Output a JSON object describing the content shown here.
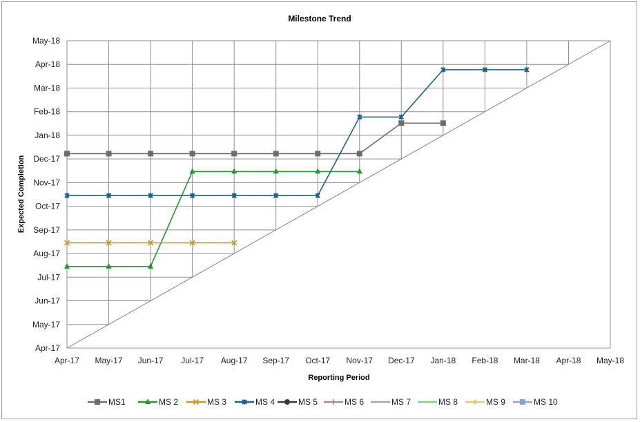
{
  "chart_data": {
    "type": "line",
    "title": "Milestone Trend",
    "xlabel": "Reporting Period",
    "ylabel": "Expected Completion",
    "x_ticks": [
      "Apr-17",
      "May-17",
      "Jun-17",
      "Jul-17",
      "Aug-17",
      "Sep-17",
      "Oct-17",
      "Nov-17",
      "Dec-17",
      "Jan-18",
      "Feb-18",
      "Mar-18",
      "Apr-18",
      "May-18"
    ],
    "y_ticks": [
      "Apr-17",
      "May-17",
      "Jun-17",
      "Jul-17",
      "Aug-17",
      "Sep-17",
      "Oct-17",
      "Nov-17",
      "Dec-17",
      "Jan-18",
      "Feb-18",
      "Mar-18",
      "Apr-18",
      "May-18"
    ],
    "xlim": [
      "Apr-17",
      "May-18"
    ],
    "ylim": [
      "Apr-17",
      "May-18"
    ],
    "grid": true,
    "legend_position": "bottom",
    "reference_line": {
      "from": [
        "Apr-17",
        "Apr-17"
      ],
      "to": [
        "May-18",
        "May-18"
      ],
      "color": "#808080"
    },
    "series": [
      {
        "name": "MS1",
        "color": "#6d6d6d",
        "marker": "square",
        "x": [
          "Apr-17",
          "May-17",
          "Jun-17",
          "Jul-17",
          "Aug-17",
          "Sep-17",
          "Oct-17",
          "Nov-17",
          "Dec-17",
          "Jan-18"
        ],
        "y": [
          "2017-12-08",
          "2017-12-08",
          "2017-12-08",
          "2017-12-08",
          "2017-12-08",
          "2017-12-08",
          "2017-12-08",
          "2017-12-08",
          "2018-01-17",
          "2018-01-17"
        ]
      },
      {
        "name": "MS 2",
        "color": "#1f9a2e",
        "marker": "triangle",
        "x": [
          "Apr-17",
          "May-17",
          "Jun-17",
          "Jul-17",
          "Aug-17",
          "Sep-17",
          "Oct-17",
          "Nov-17"
        ],
        "y": [
          "2017-07-15",
          "2017-07-15",
          "2017-07-15",
          "2017-11-15",
          "2017-11-15",
          "2017-11-15",
          "2017-11-15",
          "2017-11-15"
        ]
      },
      {
        "name": "MS 3",
        "color": "#c99a1a",
        "marker": "x",
        "x": [
          "Apr-17",
          "May-17",
          "Jun-17",
          "Jul-17",
          "Aug-17"
        ],
        "y": [
          "2017-08-15",
          "2017-08-15",
          "2017-08-15",
          "2017-08-15",
          "2017-08-15"
        ]
      },
      {
        "name": "MS 4",
        "color": "#1b5f8c",
        "marker": "star",
        "x": [
          "Apr-17",
          "May-17",
          "Jun-17",
          "Jul-17",
          "Aug-17",
          "Sep-17",
          "Oct-17",
          "Dec-17",
          "Dec-17",
          "Jan-18",
          "Feb-18",
          "Mar-18"
        ],
        "y": [
          "2017-10-15",
          "2017-10-15",
          "2017-10-15",
          "2017-10-15",
          "2017-10-15",
          "2017-10-15",
          "2017-10-15",
          "2018-01-25",
          "2018-01-25",
          "2018-03-25",
          "2018-03-25",
          "2018-03-25"
        ],
        "x_plot": [
          "Apr-17",
          "May-17",
          "Jun-17",
          "Jul-17",
          "Aug-17",
          "Sep-17",
          "Oct-17",
          "Nov-17",
          "Dec-17",
          "Jan-18",
          "Feb-18",
          "Mar-18"
        ]
      },
      {
        "name": "MS 5",
        "color": "#3a3a3a",
        "marker": "circle",
        "x": [],
        "y": []
      },
      {
        "name": "MS 6",
        "color": "#a98a8a",
        "marker": "plus",
        "x": [],
        "y": []
      },
      {
        "name": "MS 7",
        "color": "#a6a6a6",
        "marker": "none",
        "x": [],
        "y": []
      },
      {
        "name": "MS 8",
        "color": "#7fcf7f",
        "marker": "none",
        "x": [],
        "y": []
      },
      {
        "name": "MS 9",
        "color": "#f0c27a",
        "marker": "diamond",
        "x": [],
        "y": []
      },
      {
        "name": "MS 10",
        "color": "#8aa6d0",
        "marker": "square",
        "x": [],
        "y": []
      }
    ]
  }
}
